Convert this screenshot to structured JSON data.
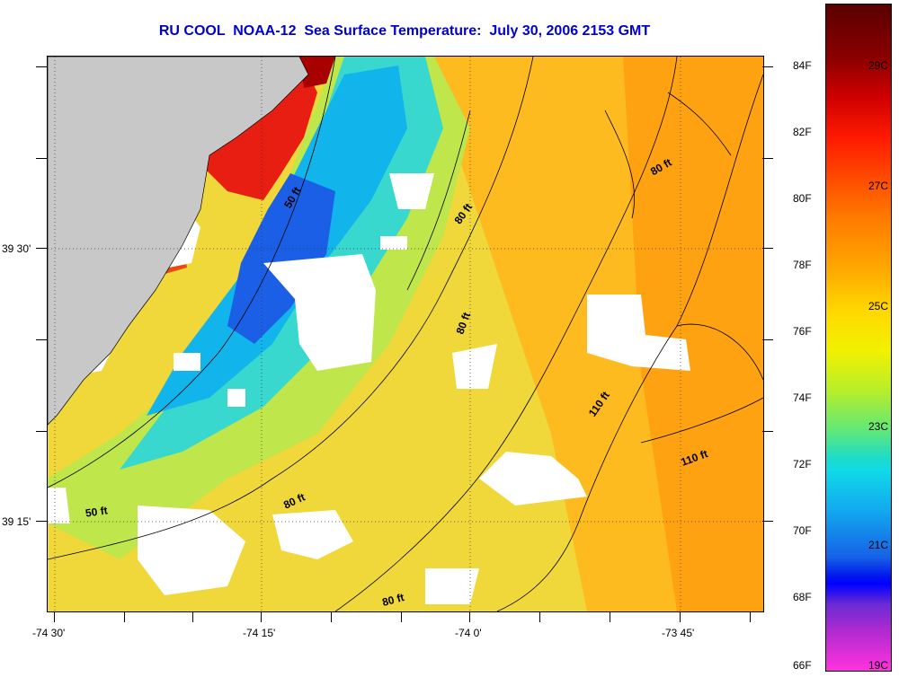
{
  "title": "RU COOL  NOAA-12  Sea Surface Temperature:  July 30, 2006 2153 GMT",
  "map": {
    "land_color": "#c8c8c8",
    "nodata_color": "#ffffff",
    "latitude_labels": [
      "39 30'",
      "39 15'"
    ],
    "longitude_labels": [
      "-74 30'",
      "-74 15'",
      "-74 0'",
      "-73 45'"
    ],
    "depth_labels": [
      "50 ft",
      "80 ft",
      "80 ft",
      "80 ft",
      "110 ft",
      "110 ft",
      "50 ft",
      "80 ft",
      "80 ft"
    ]
  },
  "colorbar": {
    "fahrenheit_labels": [
      "84F",
      "82F",
      "80F",
      "78F",
      "76F",
      "74F",
      "72F",
      "70F",
      "68F",
      "66F"
    ],
    "celsius_labels": [
      "29C",
      "27C",
      "25C",
      "23C",
      "21C",
      "19C"
    ]
  }
}
